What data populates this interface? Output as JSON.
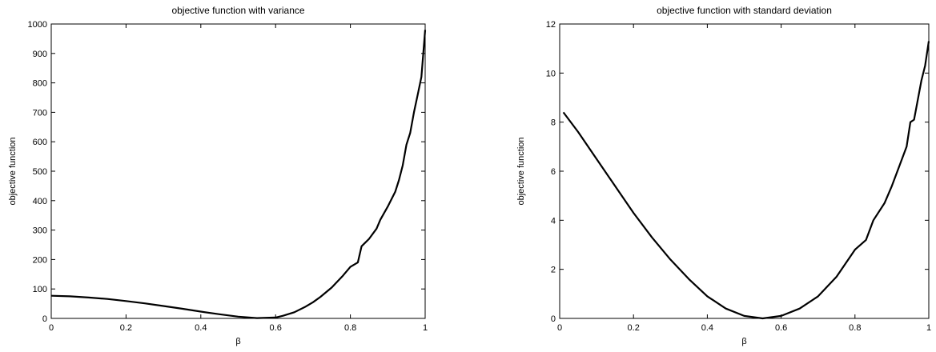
{
  "chart_data": [
    {
      "type": "line",
      "title": "objective function with variance",
      "xlabel": "β",
      "ylabel": "objective function",
      "xlim": [
        0,
        1
      ],
      "ylim": [
        0,
        1000
      ],
      "grid": false,
      "x_ticks": [
        0,
        0.2,
        0.4,
        0.6,
        0.8,
        1
      ],
      "x_tick_labels": [
        "0",
        "0.2",
        "0.4",
        "0.6",
        "0.8",
        "1"
      ],
      "y_ticks": [
        0,
        100,
        200,
        300,
        400,
        500,
        600,
        700,
        800,
        900,
        1000
      ],
      "y_tick_labels": [
        "0",
        "100",
        "200",
        "300",
        "400",
        "500",
        "600",
        "700",
        "800",
        "900",
        "1000"
      ],
      "series": [
        {
          "color": "#000000",
          "x": [
            0,
            0.05,
            0.1,
            0.15,
            0.2,
            0.25,
            0.3,
            0.35,
            0.4,
            0.45,
            0.5,
            0.55,
            0.6,
            0.62,
            0.65,
            0.68,
            0.7,
            0.72,
            0.75,
            0.78,
            0.8,
            0.82,
            0.83,
            0.85,
            0.87,
            0.88,
            0.9,
            0.92,
            0.93,
            0.94,
            0.95,
            0.96,
            0.97,
            0.98,
            0.99,
            1.0
          ],
          "y": [
            77,
            75,
            71,
            66,
            59,
            51,
            42,
            33,
            23,
            14,
            6,
            1,
            3,
            9,
            21,
            40,
            55,
            73,
            105,
            145,
            175,
            190,
            245,
            270,
            305,
            335,
            380,
            430,
            470,
            520,
            590,
            630,
            700,
            760,
            820,
            980
          ]
        }
      ]
    },
    {
      "type": "line",
      "title": "objective function with standard deviation",
      "xlabel": "β",
      "ylabel": "objective function",
      "xlim": [
        0,
        1
      ],
      "ylim": [
        0,
        12
      ],
      "grid": false,
      "x_ticks": [
        0,
        0.2,
        0.4,
        0.6,
        0.8,
        1
      ],
      "x_tick_labels": [
        "0",
        "0.2",
        "0.4",
        "0.6",
        "0.8",
        "1"
      ],
      "y_ticks": [
        0,
        2,
        4,
        6,
        8,
        10,
        12
      ],
      "y_tick_labels": [
        "0",
        "2",
        "4",
        "6",
        "8",
        "10",
        "12"
      ],
      "series": [
        {
          "color": "#000000",
          "x": [
            0.01,
            0.05,
            0.1,
            0.15,
            0.2,
            0.25,
            0.3,
            0.35,
            0.4,
            0.45,
            0.5,
            0.55,
            0.6,
            0.65,
            0.7,
            0.75,
            0.8,
            0.83,
            0.85,
            0.88,
            0.9,
            0.92,
            0.94,
            0.95,
            0.96,
            0.97,
            0.98,
            0.99,
            1.0
          ],
          "y": [
            8.4,
            7.6,
            6.5,
            5.4,
            4.3,
            3.3,
            2.4,
            1.6,
            0.9,
            0.4,
            0.1,
            0.0,
            0.1,
            0.4,
            0.9,
            1.7,
            2.8,
            3.2,
            4.0,
            4.7,
            5.4,
            6.2,
            7.0,
            8.0,
            8.1,
            8.9,
            9.7,
            10.3,
            11.3
          ]
        }
      ]
    }
  ]
}
